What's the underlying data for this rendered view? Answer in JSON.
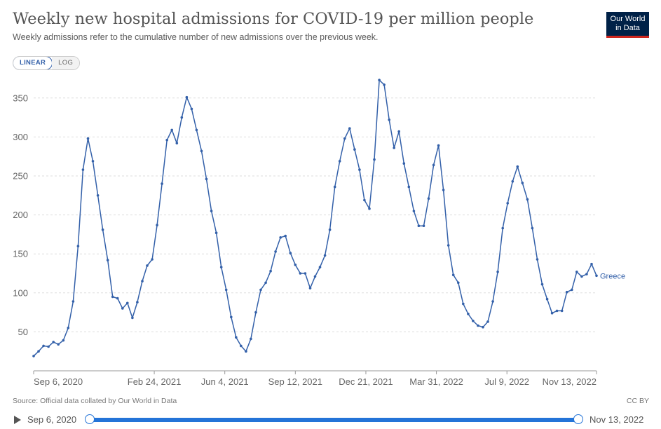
{
  "title": "Weekly new hospital admissions for COVID-19 per million people",
  "subtitle": "Weekly admissions refer to the cumulative number of new admissions over the previous week.",
  "logo": {
    "line1": "Our World",
    "line2": "in Data"
  },
  "controls": {
    "linear_label": "LINEAR",
    "log_label": "LOG"
  },
  "source": "Source: Official data collated by Our World in Data",
  "license": "CC BY",
  "timeline": {
    "start": "Sep 6, 2020",
    "end": "Nov 13, 2022"
  },
  "colors": {
    "line": "#3360a9",
    "grid": "#dddddd",
    "logo_bg": "#002147",
    "logo_accent": "#ce261e",
    "slider": "#2474d8"
  },
  "chart_data": {
    "type": "line",
    "title": "Weekly new hospital admissions for COVID-19 per million people",
    "xlabel": "",
    "ylabel": "",
    "ylim": [
      0,
      375
    ],
    "yticks": [
      50,
      100,
      150,
      200,
      250,
      300,
      350
    ],
    "grid": "horizontal dashed",
    "x_start": "2020-09-06",
    "x_end": "2022-11-13",
    "x_tick_labels": [
      "Sep 6, 2020",
      "Feb 24, 2021",
      "Jun 4, 2021",
      "Sep 12, 2021",
      "Dec 21, 2021",
      "Mar 31, 2022",
      "Jul 9, 2022",
      "Nov 13, 2022"
    ],
    "series": [
      {
        "name": "Greece",
        "color": "#3360a9",
        "values": [
          19,
          25,
          32,
          31,
          37,
          34,
          39,
          55,
          89,
          160,
          258,
          298,
          269,
          225,
          181,
          142,
          95,
          93,
          80,
          87,
          68,
          88,
          115,
          135,
          143,
          187,
          240,
          296,
          309,
          292,
          325,
          351,
          336,
          309,
          282,
          246,
          205,
          177,
          133,
          104,
          69,
          43,
          32,
          25,
          41,
          75,
          104,
          113,
          128,
          153,
          171,
          173,
          151,
          136,
          125,
          125,
          106,
          121,
          133,
          148,
          181,
          236,
          269,
          298,
          311,
          284,
          258,
          219,
          208,
          271,
          373,
          367,
          322,
          286,
          307,
          266,
          236,
          205,
          186,
          186,
          221,
          264,
          289,
          232,
          161,
          123,
          113,
          86,
          73,
          64,
          58,
          56,
          63,
          89,
          127,
          183,
          215,
          243,
          262,
          241,
          220,
          183,
          143,
          111,
          92,
          74,
          77,
          77,
          101,
          104,
          127,
          121,
          124,
          137,
          122
        ]
      }
    ]
  }
}
